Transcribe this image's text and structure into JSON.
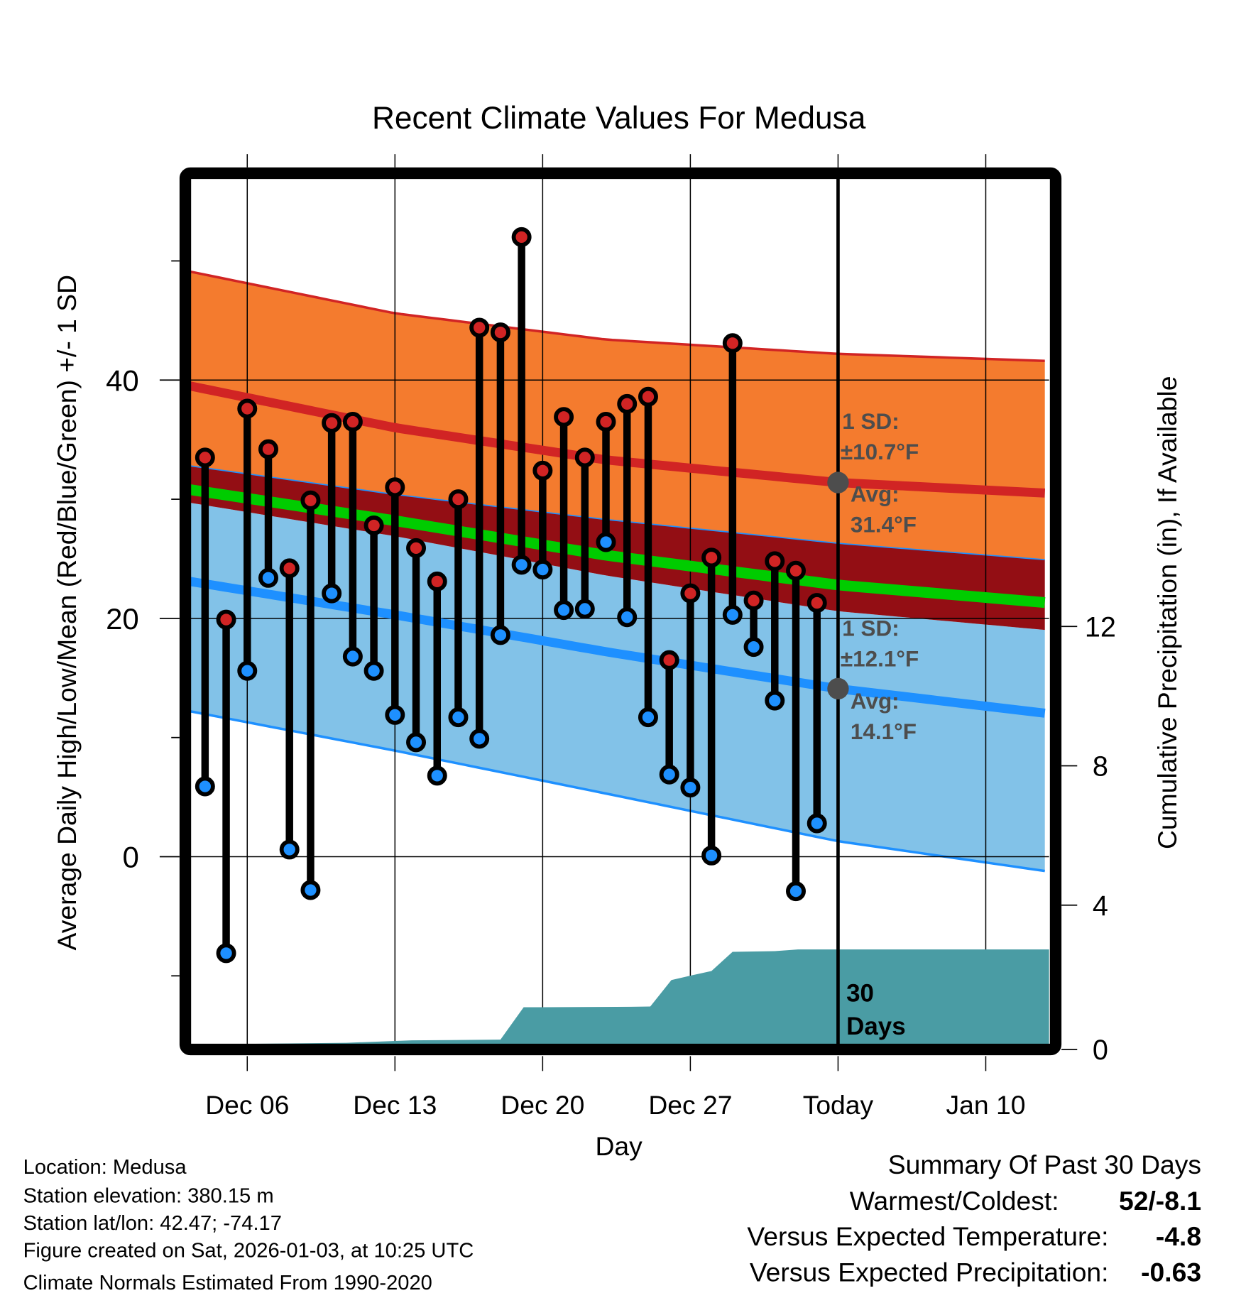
{
  "chart_data": {
    "type": "line",
    "title": "Recent Climate Values For Medusa",
    "xlabel": "Day",
    "ylabel": "Average Daily High/Low/Mean (Red/Blue/Green) +/- 1 SD",
    "ylabel_right": "Cumulative Precipitation (in), If Available",
    "ylim": [
      -15.8,
      57
    ],
    "ylim_right": [
      0,
      25
    ],
    "x_range_days": [
      0.3,
      41
    ],
    "y_ticks": [
      40,
      20,
      0
    ],
    "y_minor_ticks": [
      50,
      30,
      10,
      -10
    ],
    "y_ticks_right": [
      0,
      4,
      8,
      12
    ],
    "x_ticks": [
      {
        "day": 3,
        "label": "Dec 06"
      },
      {
        "day": 10,
        "label": "Dec 13"
      },
      {
        "day": 17,
        "label": "Dec 20"
      },
      {
        "day": 24,
        "label": "Dec 27"
      },
      {
        "day": 31,
        "label": "Today"
      },
      {
        "day": 38,
        "label": "Jan 10"
      }
    ],
    "grid": true,
    "today_day": 31,
    "days": [
      1,
      2,
      3,
      4,
      5,
      6,
      7,
      8,
      9,
      10,
      11,
      12,
      13,
      14,
      15,
      16,
      17,
      18,
      19,
      20,
      21,
      22,
      23,
      24,
      25,
      26,
      27,
      28,
      29,
      30
    ],
    "series": [
      {
        "name": "Daily High",
        "color": "#d12424",
        "values": [
          33.5,
          19.9,
          37.6,
          34.2,
          24.2,
          29.9,
          36.4,
          36.5,
          27.8,
          31.0,
          25.9,
          23.1,
          30.0,
          44.4,
          44.0,
          52.0,
          32.4,
          36.9,
          33.5,
          36.5,
          38.0,
          38.6,
          16.5,
          22.1,
          25.1,
          43.1,
          21.5,
          24.8,
          24.0,
          21.3
        ]
      },
      {
        "name": "Daily Low",
        "color": "#1e90ff",
        "values": [
          5.9,
          -8.1,
          15.6,
          23.4,
          0.6,
          -2.8,
          22.1,
          16.8,
          15.6,
          11.9,
          9.6,
          6.8,
          11.7,
          9.9,
          18.6,
          24.5,
          24.1,
          20.7,
          20.8,
          26.4,
          20.1,
          11.7,
          6.9,
          5.8,
          0.1,
          20.3,
          17.6,
          13.1,
          -2.9,
          2.8
        ]
      }
    ],
    "normals": {
      "days": [
        0.3,
        10,
        20,
        31,
        41
      ],
      "high_plus_sd": [
        49.1,
        45.6,
        43.4,
        42.2,
        41.6
      ],
      "high_mean": [
        39.5,
        36.0,
        33.3,
        31.4,
        30.5
      ],
      "high_minus_sd": [
        32.8,
        30.4,
        28.3,
        26.3,
        24.9
      ],
      "mean": [
        30.8,
        28.2,
        25.3,
        22.8,
        21.3
      ],
      "low_plus_sd": [
        29.7,
        26.9,
        23.6,
        20.6,
        19.0
      ],
      "low_mean": [
        23.1,
        20.3,
        17.2,
        14.1,
        12.0
      ],
      "low_minus_sd": [
        12.2,
        8.9,
        5.3,
        1.3,
        -1.25
      ]
    },
    "colors": {
      "high_band": "#f47b2e",
      "high_line": "#d12424",
      "overlap_band": "#930e14",
      "mean_line": "#00cc00",
      "low_band": "#82c2e8",
      "low_line": "#1e90ff",
      "precip": "#4a9ca4",
      "annotation": "#4d4d4d"
    },
    "precipitation": {
      "days": [
        0.3,
        7.7,
        10.8,
        15,
        16.1,
        20.5,
        22.1,
        23.1,
        24.1,
        25.0,
        26.0,
        28.0,
        29.1,
        41
      ],
      "values": [
        0,
        0.05,
        0.12,
        0.14,
        1.07,
        1.08,
        1.09,
        1.85,
        1.99,
        2.11,
        2.66,
        2.68,
        2.73,
        2.73
      ],
      "label_line1": "30",
      "label_line2": "Days"
    },
    "annotations": {
      "high_sd_line1": "1 SD:",
      "high_sd_line2": "±10.7°F",
      "high_avg_line1": "Avg:",
      "high_avg_line2": "31.4°F",
      "high_avg_value": 31.4,
      "low_sd_line1": "1 SD:",
      "low_sd_line2": "±12.1°F",
      "low_avg_line1": "Avg:",
      "low_avg_line2": "14.1°F",
      "low_avg_value": 14.1
    }
  },
  "station_info": {
    "location": "Location: Medusa",
    "elevation": "Station elevation: 380.15 m",
    "latlon": "Station lat/lon: 42.47; -74.17",
    "created": "Figure created on Sat, 2026-01-03, at 10:25 UTC",
    "normals": "Climate Normals Estimated From 1990-2020"
  },
  "summary": {
    "title": "Summary Of Past 30 Days",
    "warmest_coldest_label": "Warmest/Coldest:",
    "warmest_coldest_value": "52/-8.1",
    "temp_label": "Versus Expected Temperature:",
    "temp_value": "-4.8",
    "temp_color": "#2f93f0",
    "precip_label": "Versus Expected Precipitation:",
    "precip_value": "-0.63",
    "precip_color": "#a0522d"
  }
}
